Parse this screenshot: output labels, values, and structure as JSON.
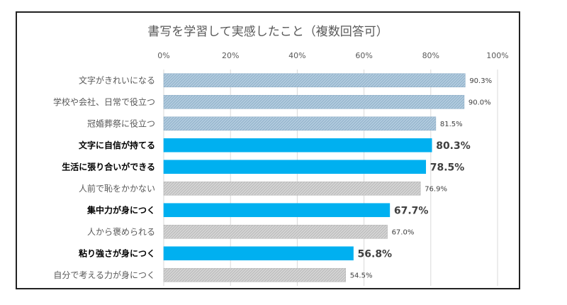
{
  "chart_data": {
    "type": "bar",
    "orientation": "horizontal",
    "title": "書写を学習して実感したこと（複数回答可）",
    "xlim": [
      0,
      100
    ],
    "ticks": [
      "0%",
      "20%",
      "40%",
      "60%",
      "80%",
      "100%"
    ],
    "tick_values": [
      0,
      20,
      40,
      60,
      80,
      100
    ],
    "grid": true,
    "categories": [
      "文字がきれいになる",
      "学校や会社、日常で役立つ",
      "冠婚葬祭に役立つ",
      "文字に自信が持てる",
      "生活に張り合いができる",
      "人前で恥をかかない",
      "集中力が身につく",
      "人から褒められる",
      "粘り強さが身につく",
      "自分で考える力が身につく"
    ],
    "values": [
      90.3,
      90.0,
      81.5,
      80.3,
      78.5,
      76.9,
      67.7,
      67.0,
      56.8,
      54.5
    ],
    "value_labels": [
      "90.3%",
      "90.0%",
      "81.5%",
      "80.3%",
      "78.5%",
      "76.9%",
      "67.7%",
      "67.0%",
      "56.8%",
      "54.5%"
    ],
    "highlighted": [
      false,
      false,
      false,
      true,
      true,
      false,
      true,
      false,
      true,
      false
    ],
    "bar_styles": [
      "blue-hatch",
      "blue-hatch",
      "blue-hatch",
      "solid",
      "solid",
      "gray-hatch",
      "solid",
      "gray-hatch",
      "solid",
      "gray-hatch"
    ],
    "colors": {
      "solid": "#00b0f0",
      "blue_hatch_bg": "#b4cde0",
      "blue_hatch_line": "#8fb0c8",
      "gray_hatch_bg": "#d6d6d6",
      "gray_hatch_line": "#b8b8b8",
      "grid": "#d9d9d9"
    }
  }
}
